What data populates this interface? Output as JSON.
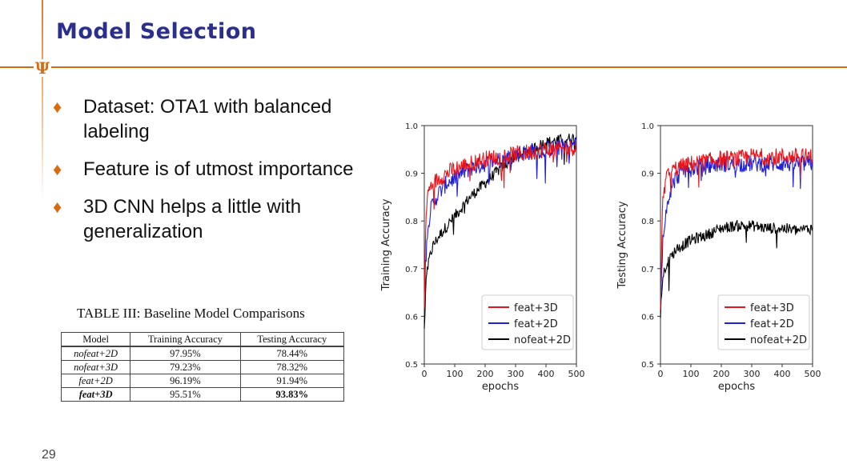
{
  "slide": {
    "title": "Model Selection",
    "logo": "Ψ",
    "page_number": "29",
    "bullets": [
      "Dataset: OTA1 with balanced labeling",
      "Feature is of utmost importance",
      "3D CNN helps a little with generalization"
    ]
  },
  "table": {
    "caption": "TABLE III: Baseline Model Comparisons",
    "headers": [
      "Model",
      "Training Accuracy",
      "Testing Accuracy"
    ],
    "rows": [
      {
        "model": "nofeat+2D",
        "train": "97.95%",
        "test": "78.44%"
      },
      {
        "model": "nofeat+3D",
        "train": "79.23%",
        "test": "78.32%"
      },
      {
        "model": "feat+2D",
        "train": "96.19%",
        "test": "91.94%"
      },
      {
        "model": "feat+3D",
        "train": "95.51%",
        "test": "93.83%"
      }
    ]
  },
  "colors": {
    "title": "#2b2e8c",
    "accent": "#d86a12",
    "feat3d": "#e8141b",
    "feat2d": "#1f1fd8",
    "nofeat2d": "#000000"
  },
  "chart_data": [
    {
      "type": "line",
      "xlabel": "epochs",
      "ylabel": "Training Accuracy",
      "xlim": [
        0,
        500
      ],
      "ylim": [
        0.5,
        1.0
      ],
      "xticks": [
        0,
        100,
        200,
        300,
        400,
        500
      ],
      "yticks": [
        0.5,
        0.6,
        0.7,
        0.8,
        0.9,
        1.0
      ],
      "legend_position": "bottom-right",
      "series": [
        {
          "name": "feat+3D",
          "color": "#e8141b",
          "x": [
            0,
            5,
            10,
            20,
            30,
            50,
            75,
            100,
            150,
            200,
            250,
            300,
            350,
            400,
            450,
            500
          ],
          "y": [
            0.62,
            0.8,
            0.85,
            0.87,
            0.88,
            0.89,
            0.9,
            0.91,
            0.92,
            0.93,
            0.935,
            0.94,
            0.945,
            0.95,
            0.95,
            0.955
          ]
        },
        {
          "name": "feat+2D",
          "color": "#1f1fd8",
          "x": [
            0,
            5,
            10,
            20,
            30,
            50,
            75,
            100,
            150,
            200,
            250,
            300,
            350,
            400,
            450,
            500
          ],
          "y": [
            0.65,
            0.72,
            0.78,
            0.82,
            0.84,
            0.86,
            0.88,
            0.89,
            0.91,
            0.92,
            0.93,
            0.94,
            0.945,
            0.95,
            0.955,
            0.96
          ]
        },
        {
          "name": "nofeat+2D",
          "color": "#000000",
          "x": [
            0,
            5,
            10,
            20,
            30,
            50,
            75,
            100,
            150,
            200,
            250,
            300,
            350,
            400,
            450,
            500
          ],
          "y": [
            0.57,
            0.66,
            0.7,
            0.73,
            0.75,
            0.77,
            0.79,
            0.81,
            0.85,
            0.88,
            0.91,
            0.935,
            0.95,
            0.965,
            0.97,
            0.975
          ]
        }
      ]
    },
    {
      "type": "line",
      "xlabel": "epochs",
      "ylabel": "Testing Accuracy",
      "xlim": [
        0,
        500
      ],
      "ylim": [
        0.5,
        1.0
      ],
      "xticks": [
        0,
        100,
        200,
        300,
        400,
        500
      ],
      "yticks": [
        0.5,
        0.6,
        0.7,
        0.8,
        0.9,
        1.0
      ],
      "legend_position": "bottom-right",
      "series": [
        {
          "name": "feat+3D",
          "color": "#e8141b",
          "x": [
            0,
            5,
            10,
            20,
            30,
            50,
            75,
            100,
            150,
            200,
            250,
            300,
            350,
            400,
            450,
            500
          ],
          "y": [
            0.62,
            0.8,
            0.86,
            0.89,
            0.9,
            0.91,
            0.915,
            0.92,
            0.925,
            0.93,
            0.93,
            0.935,
            0.935,
            0.935,
            0.935,
            0.935
          ]
        },
        {
          "name": "feat+2D",
          "color": "#1f1fd8",
          "x": [
            0,
            5,
            10,
            20,
            30,
            50,
            75,
            100,
            150,
            200,
            250,
            300,
            350,
            400,
            450,
            500
          ],
          "y": [
            0.63,
            0.72,
            0.78,
            0.83,
            0.86,
            0.89,
            0.905,
            0.91,
            0.915,
            0.92,
            0.92,
            0.92,
            0.92,
            0.92,
            0.92,
            0.92
          ]
        },
        {
          "name": "nofeat+2D",
          "color": "#000000",
          "x": [
            0,
            5,
            10,
            20,
            30,
            50,
            75,
            100,
            150,
            200,
            250,
            300,
            350,
            400,
            450,
            500
          ],
          "y": [
            0.6,
            0.66,
            0.69,
            0.71,
            0.72,
            0.74,
            0.75,
            0.76,
            0.77,
            0.785,
            0.79,
            0.79,
            0.785,
            0.785,
            0.78,
            0.785
          ]
        }
      ]
    }
  ]
}
